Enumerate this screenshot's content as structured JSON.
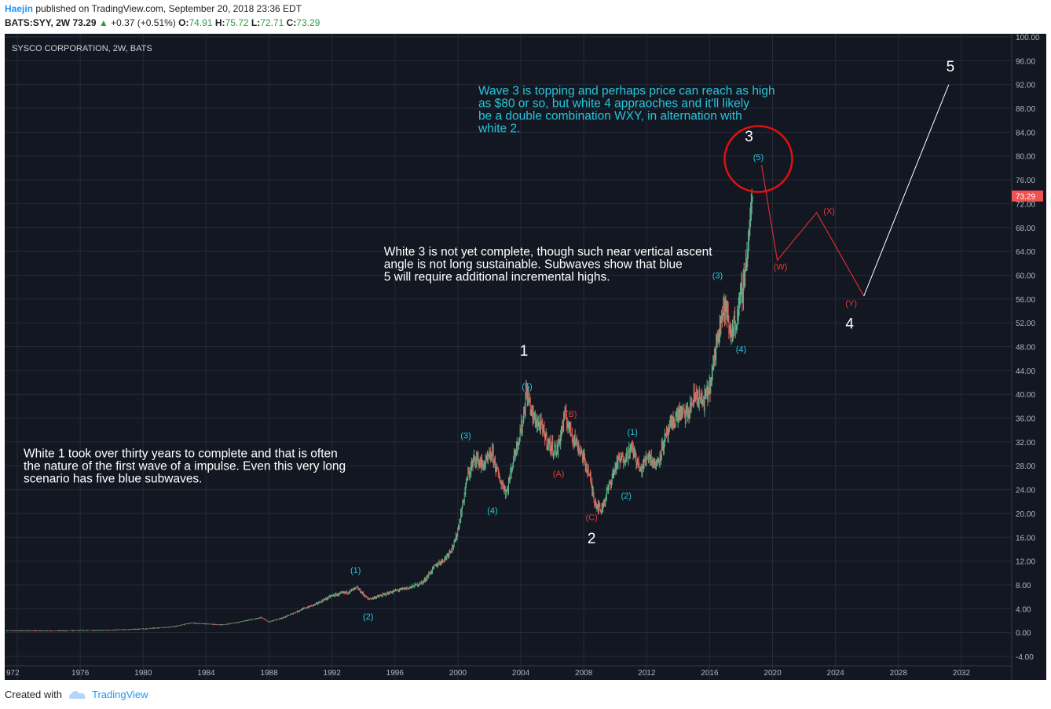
{
  "header": {
    "author": "Haejin",
    "published": "published on TradingView.com, September 20, 2018 23:36 EDT",
    "symbol": "BATS:SYY, 2W",
    "last": "73.29",
    "change": "+0.37 (+0.51%)",
    "o_label": "O:",
    "o_value": "74.91",
    "h_label": "H:",
    "h_value": "75.72",
    "l_label": "L:",
    "l_value": "72.71",
    "c_label": "C:",
    "c_value": "73.29"
  },
  "footer": {
    "created_with": "Created with",
    "brand": "TradingView"
  },
  "colors": {
    "background": "#131722",
    "grid": "#262b38",
    "cyan": "#26c6da",
    "red": "#e53935",
    "white": "#ffffff",
    "price_tag": "#ef5350"
  },
  "chart_data": {
    "type": "candlestick",
    "title": "SYSCO CORPORATION, 2W, BATS",
    "ylim": [
      -4,
      100
    ],
    "xlim": [
      1971.2,
      2035.2
    ],
    "y_ticks": [
      "-4.00",
      "0.00",
      "4.00",
      "8.00",
      "12.00",
      "16.00",
      "20.00",
      "24.00",
      "28.00",
      "32.00",
      "36.00",
      "40.00",
      "44.00",
      "48.00",
      "52.00",
      "56.00",
      "60.00",
      "64.00",
      "68.00",
      "72.00",
      "76.00",
      "80.00",
      "84.00",
      "88.00",
      "92.00",
      "96.00",
      "100.00"
    ],
    "x_ticks": [
      "972",
      "1976",
      "1980",
      "1984",
      "1988",
      "1992",
      "1996",
      "2000",
      "2004",
      "2008",
      "2012",
      "2016",
      "2020",
      "2024",
      "2028",
      "2032"
    ],
    "last_price_tag": "73.29",
    "price_path": [
      [
        1971.3,
        0.3
      ],
      [
        1975,
        0.3
      ],
      [
        1978,
        0.4
      ],
      [
        1980,
        0.6
      ],
      [
        1982,
        1.0
      ],
      [
        1983,
        1.6
      ],
      [
        1985,
        1.3
      ],
      [
        1986,
        1.7
      ],
      [
        1987.5,
        2.5
      ],
      [
        1988,
        1.8
      ],
      [
        1989,
        2.6
      ],
      [
        1990,
        3.8
      ],
      [
        1991,
        4.8
      ],
      [
        1992,
        6.2
      ],
      [
        1993,
        6.8
      ],
      [
        1993.6,
        7.5
      ],
      [
        1994.3,
        5.6
      ],
      [
        1995,
        6.1
      ],
      [
        1996,
        7.0
      ],
      [
        1997,
        7.6
      ],
      [
        1997.8,
        8.5
      ],
      [
        1998.5,
        11.0
      ],
      [
        1999.2,
        12.5
      ],
      [
        1999.8,
        15.0
      ],
      [
        2000.1,
        18.5
      ],
      [
        2000.6,
        26.0
      ],
      [
        2001.1,
        29.5
      ],
      [
        2001.6,
        28.0
      ],
      [
        2002.2,
        30.0
      ],
      [
        2002.6,
        26.0
      ],
      [
        2003.1,
        23.5
      ],
      [
        2003.6,
        30.0
      ],
      [
        2004.1,
        35.0
      ],
      [
        2004.35,
        40.5
      ],
      [
        2004.8,
        36.0
      ],
      [
        2005.3,
        34.5
      ],
      [
        2005.8,
        31.5
      ],
      [
        2006.3,
        30.5
      ],
      [
        2006.8,
        36.5
      ],
      [
        2007.3,
        33.0
      ],
      [
        2007.8,
        30.5
      ],
      [
        2008.3,
        27.0
      ],
      [
        2008.7,
        22.0
      ],
      [
        2009.1,
        20.5
      ],
      [
        2009.6,
        24.5
      ],
      [
        2010.1,
        28.5
      ],
      [
        2010.6,
        29.5
      ],
      [
        2011.1,
        31.0
      ],
      [
        2011.6,
        27.0
      ],
      [
        2012.1,
        30.0
      ],
      [
        2012.6,
        28.0
      ],
      [
        2013.1,
        32.0
      ],
      [
        2013.6,
        35.0
      ],
      [
        2014.1,
        37.0
      ],
      [
        2014.6,
        36.5
      ],
      [
        2015.1,
        40.0
      ],
      [
        2015.6,
        38.5
      ],
      [
        2016.1,
        42.0
      ],
      [
        2016.6,
        52.0
      ],
      [
        2017.0,
        55.0
      ],
      [
        2017.3,
        50.0
      ],
      [
        2017.7,
        52.5
      ],
      [
        2018.1,
        58.0
      ],
      [
        2018.4,
        64.0
      ],
      [
        2018.6,
        70.0
      ],
      [
        2018.75,
        73.29
      ]
    ],
    "wave_labels_white": [
      {
        "text": "1",
        "x": 2004.2,
        "y": 46.5
      },
      {
        "text": "2",
        "x": 2008.5,
        "y": 15.0
      },
      {
        "text": "3",
        "x": 2018.5,
        "y": 82.5
      },
      {
        "text": "4",
        "x": 2024.9,
        "y": 51.0
      },
      {
        "text": "5",
        "x": 2031.3,
        "y": 94.2
      }
    ],
    "wave_labels_cyan": [
      {
        "text": "(1)",
        "x": 1993.5,
        "y": 10.0
      },
      {
        "text": "(2)",
        "x": 1994.3,
        "y": 2.2
      },
      {
        "text": "(3)",
        "x": 2000.5,
        "y": 32.6
      },
      {
        "text": "(4)",
        "x": 2002.2,
        "y": 20.0
      },
      {
        "text": "(5)",
        "x": 2004.4,
        "y": 40.8
      },
      {
        "text": "(1)",
        "x": 2011.1,
        "y": 33.2
      },
      {
        "text": "(2)",
        "x": 2010.7,
        "y": 22.5
      },
      {
        "text": "(3)",
        "x": 2016.5,
        "y": 59.5
      },
      {
        "text": "(4)",
        "x": 2018.0,
        "y": 47.1
      },
      {
        "text": "(5)",
        "x": 2019.1,
        "y": 79.3
      }
    ],
    "wave_labels_red": [
      {
        "text": "(A)",
        "x": 2006.4,
        "y": 26.2
      },
      {
        "text": "(B)",
        "x": 2007.2,
        "y": 36.2
      },
      {
        "text": "(C)",
        "x": 2008.5,
        "y": 18.9
      },
      {
        "text": "(W)",
        "x": 2020.5,
        "y": 60.9
      },
      {
        "text": "(X)",
        "x": 2023.6,
        "y": 70.3
      },
      {
        "text": "(Y)",
        "x": 2025.0,
        "y": 54.8
      }
    ],
    "projection_red": [
      [
        2019.3,
        78.5
      ],
      [
        2020.3,
        62.5
      ],
      [
        2022.8,
        70.5
      ],
      [
        2025.8,
        56.5
      ]
    ],
    "projection_white": [
      [
        2025.8,
        56.5
      ],
      [
        2031.2,
        92.0
      ]
    ],
    "circle": {
      "x": 2019.1,
      "y": 79.5
    },
    "annotations": [
      {
        "color": "cyan",
        "lines": [
          "Wave 3 is topping and perhaps price can reach as high",
          "as $80 or so, but white 4 appraoches and it'll likely",
          "be a double combination WXY, in alternation with",
          "white 2."
        ],
        "x": 2001.3,
        "y": 90.3
      },
      {
        "color": "white",
        "lines": [
          "White 3 is not yet complete, though such near vertical ascent",
          "angle is not long sustainable. Subwaves show that blue",
          "5 will require additional incremental highs."
        ],
        "x": 1995.3,
        "y": 63.3
      },
      {
        "color": "white",
        "lines": [
          "White 1 took over thirty years to complete and that is often",
          "the nature of the first wave of a impulse. Even this very long",
          "scenario has five blue subwaves."
        ],
        "x": 1972.4,
        "y": 29.4
      }
    ]
  }
}
